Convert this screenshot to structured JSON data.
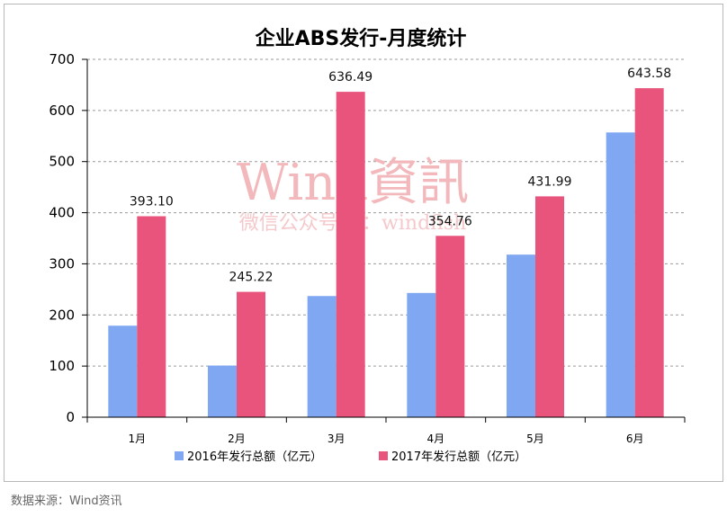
{
  "chart_data": {
    "type": "bar",
    "title": "企业ABS发行-月度统计",
    "categories": [
      "1月",
      "2月",
      "3月",
      "4月",
      "5月",
      "6月"
    ],
    "series": [
      {
        "name": "2016年发行总额（亿元）",
        "color": "#7fa7f2",
        "values": [
          179,
          101,
          237,
          243,
          318,
          557
        ]
      },
      {
        "name": "2017年发行总额（亿元）",
        "color": "#e8547c",
        "values": [
          393.1,
          245.22,
          636.49,
          354.76,
          431.99,
          643.58
        ]
      }
    ],
    "data_labels": [
      "393.10",
      "245.22",
      "636.49",
      "354.76",
      "431.99",
      "643.58"
    ],
    "ylim": [
      0,
      700
    ],
    "yticks": [
      "0",
      "100",
      "200",
      "300",
      "400",
      "500",
      "600",
      "700"
    ],
    "grid": true,
    "legend": "bottom"
  },
  "watermark": {
    "line1": "Wind資訊",
    "line2": "微信公众号ID：windfish"
  },
  "source": "数据来源：Wind资讯"
}
